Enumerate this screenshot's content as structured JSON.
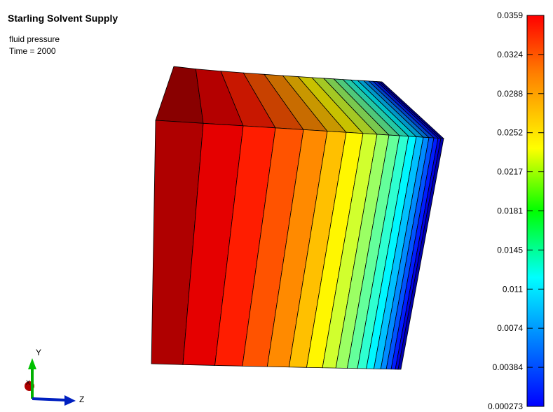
{
  "header": {
    "title": "Starling Solvent Supply",
    "variable": "fluid pressure",
    "time": "Time = 2000"
  },
  "colorbar": {
    "labels": [
      "0.0359",
      "0.0324",
      "0.0288",
      "0.0252",
      "0.0217",
      "0.0181",
      "0.0145",
      "0.011",
      "0.0074",
      "0.00384",
      "0.000273"
    ]
  },
  "triad": {
    "y": "Y",
    "z": "Z",
    "x": "X"
  }
}
